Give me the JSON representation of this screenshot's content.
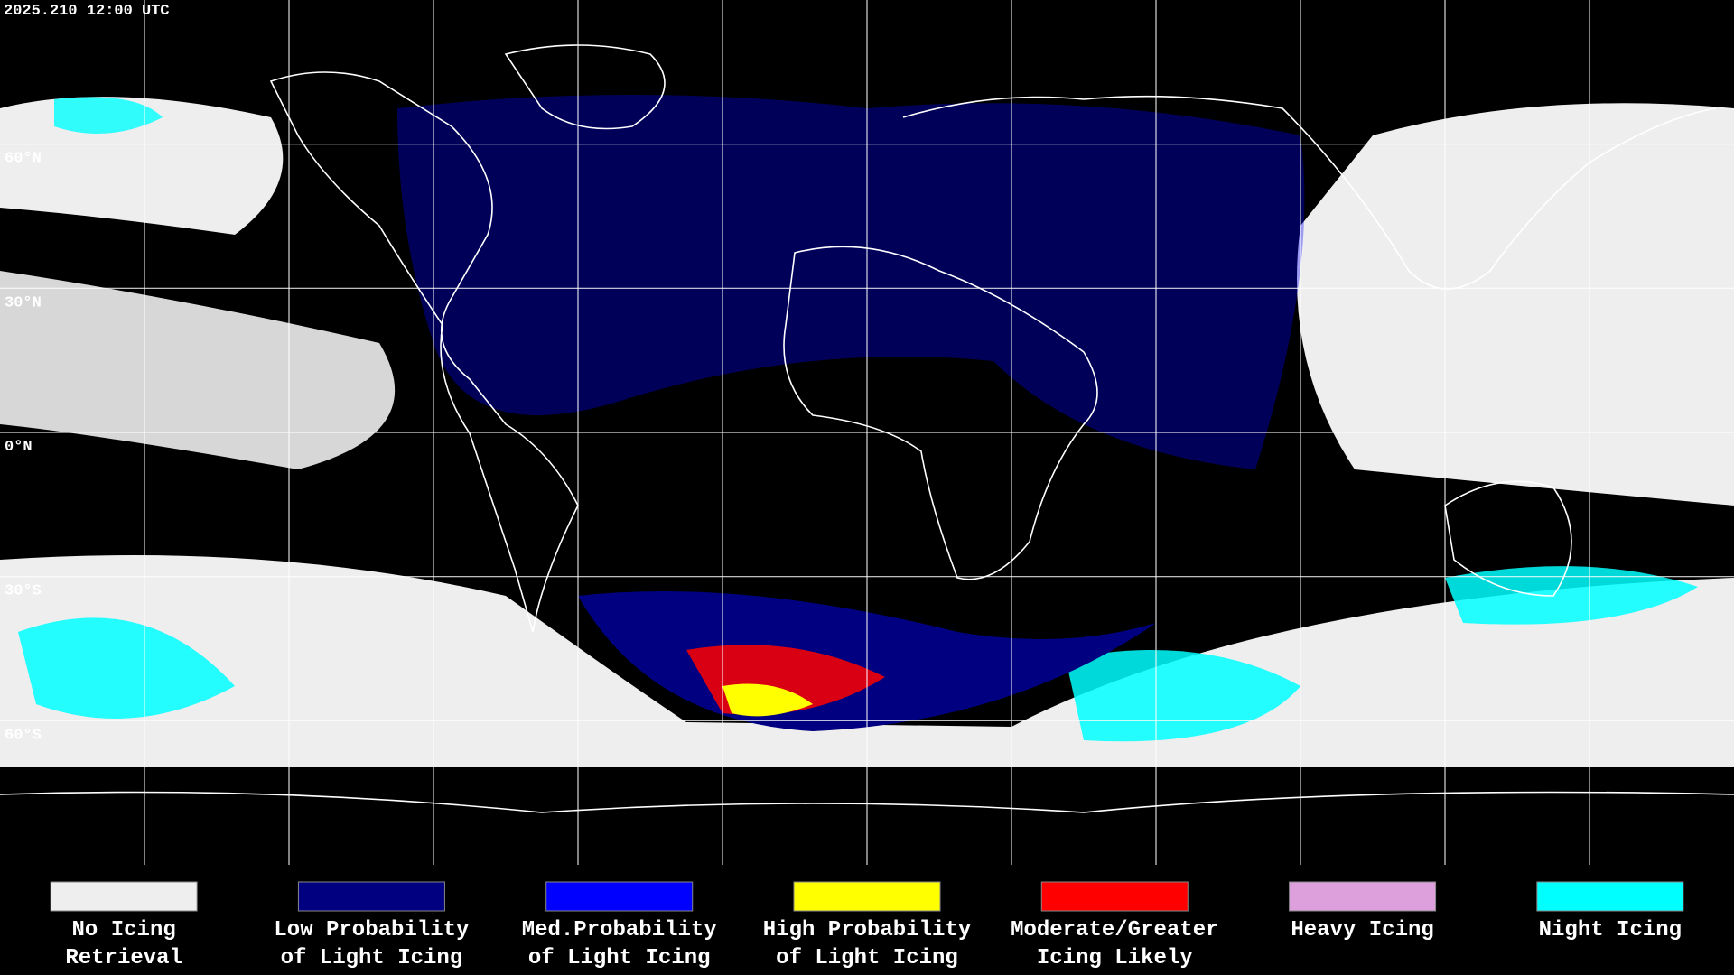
{
  "header": {
    "title": "2025.210 12:00 UTC"
  },
  "latitude_labels": [
    "60°N",
    "30°N",
    "0°N",
    "30°S",
    "60°S"
  ],
  "legend": [
    {
      "lines": [
        "No Icing",
        "Retrieval"
      ],
      "color": "#eeeeee"
    },
    {
      "lines": [
        "Low Probability",
        "of Light Icing"
      ],
      "color": "#000080"
    },
    {
      "lines": [
        "Med.Probability",
        "of Light Icing"
      ],
      "color": "#0000ff"
    },
    {
      "lines": [
        "High Probability",
        "of Light Icing"
      ],
      "color": "#ffff00"
    },
    {
      "lines": [
        "Moderate/Greater",
        "Icing Likely"
      ],
      "color": "#ff0000"
    },
    {
      "lines": [
        "Heavy Icing"
      ],
      "color": "#dda0dd"
    },
    {
      "lines": [
        "Night Icing"
      ],
      "color": "#00ffff"
    }
  ]
}
